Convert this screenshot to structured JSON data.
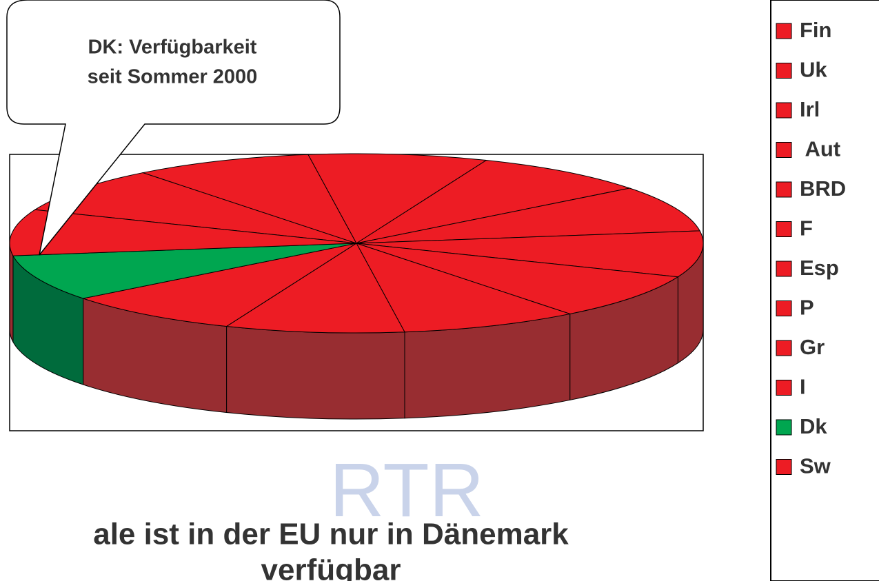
{
  "chart_data": {
    "type": "pie",
    "watermark": "RTR",
    "annotation": [
      "DK: Verfügbarkeit",
      "seit Sommer 2000"
    ],
    "title": [
      "ale ist in der EU nur in Dänemark",
      "verfügbar"
    ],
    "categories": [
      "Fin",
      "Uk",
      "Irl",
      " Aut",
      "BRD",
      "F",
      "Esp",
      "P",
      "Gr",
      "I",
      "Dk",
      "Sw"
    ],
    "values": [
      1,
      1,
      1,
      1,
      1,
      1,
      1,
      1,
      1,
      1,
      1,
      1
    ],
    "colors": [
      "#ed1c24",
      "#ed1c24",
      "#ed1c24",
      "#ed1c24",
      "#ed1c24",
      "#ed1c24",
      "#ed1c24",
      "#ed1c24",
      "#ed1c24",
      "#ed1c24",
      "#00a650",
      "#ed1c24"
    ],
    "legend": "right"
  }
}
